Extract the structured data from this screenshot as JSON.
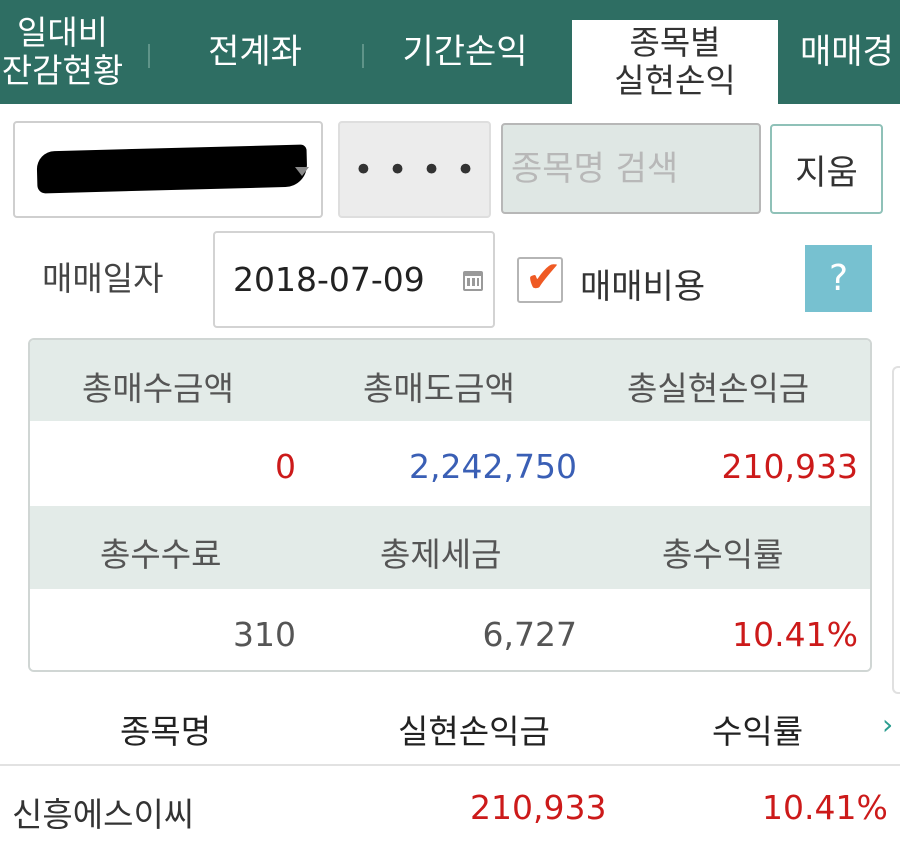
{
  "tabs": [
    {
      "label_line1": "일대비",
      "label_line2": "잔감현황",
      "active": false
    },
    {
      "label": "전계좌",
      "active": false
    },
    {
      "label": "기간손익",
      "active": false
    },
    {
      "label_line1": "종목별",
      "label_line2": "실현손익",
      "active": true
    },
    {
      "label": "매매경",
      "active": false
    }
  ],
  "filters": {
    "password_mask": "••••",
    "search_placeholder": "종목명 검색",
    "clear_label": "지움"
  },
  "date_row": {
    "label": "매매일자",
    "date": "2018-07-09",
    "fee_checkbox_label": "매매비용",
    "fee_checked": true,
    "help_label": "?"
  },
  "summary": {
    "row1_headers": [
      "총매수금액",
      "총매도금액",
      "총실현손익금"
    ],
    "row1_values": [
      "0",
      "2,242,750",
      "210,933"
    ],
    "row2_headers": [
      "총수수료",
      "총제세금",
      "총수익률"
    ],
    "row2_values": [
      "310",
      "6,727",
      "10.41%"
    ]
  },
  "table": {
    "headers": [
      "종목명",
      "실현손익금",
      "수익률"
    ],
    "scroll_arrow": "›",
    "rows": [
      {
        "name": "신흥에스이씨",
        "realized_pl": "210,933",
        "return_rate": "10.41%"
      }
    ]
  },
  "colors": {
    "tab_bar": "#2e6e63",
    "positive": "#cc1a1a",
    "sell": "#3a5fb5",
    "help_button": "#77c1d0",
    "check": "#ef5a24"
  }
}
